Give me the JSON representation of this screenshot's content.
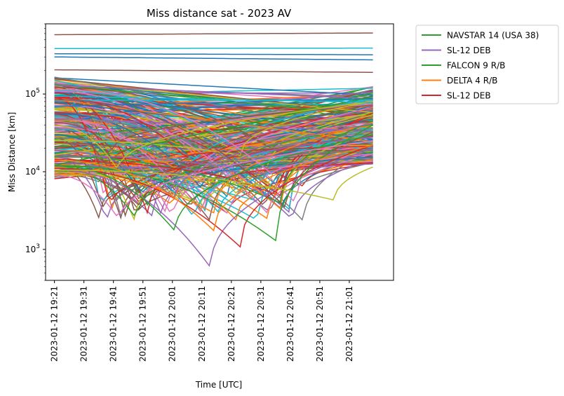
{
  "chart_data": {
    "type": "line",
    "title": "Miss distance sat - 2023 AV",
    "xlabel": "Time [UTC]",
    "ylabel": "Miss Distance [km]",
    "yscale": "log",
    "ylim": [
      400,
      800000
    ],
    "xlim_minutes": [
      -3,
      115
    ],
    "x_ticks": [
      {
        "label": "2023-01-12 19:21",
        "minute": 0
      },
      {
        "label": "2023-01-12 19:31",
        "minute": 10
      },
      {
        "label": "2023-01-12 19:41",
        "minute": 20
      },
      {
        "label": "2023-01-12 19:51",
        "minute": 30
      },
      {
        "label": "2023-01-12 20:01",
        "minute": 40
      },
      {
        "label": "2023-01-12 20:11",
        "minute": 50
      },
      {
        "label": "2023-01-12 20:21",
        "minute": 60
      },
      {
        "label": "2023-01-12 20:31",
        "minute": 70
      },
      {
        "label": "2023-01-12 20:41",
        "minute": 80
      },
      {
        "label": "2023-01-12 20:51",
        "minute": 90
      },
      {
        "label": "2023-01-12 21:01",
        "minute": 100
      }
    ],
    "y_ticks": [
      {
        "label": "10",
        "exp": "3",
        "value": 1000
      },
      {
        "label": "10",
        "exp": "4",
        "value": 10000
      },
      {
        "label": "10",
        "exp": "5",
        "value": 100000
      }
    ],
    "legend": {
      "placement": "outside-upper-right",
      "entries": [
        {
          "name": "NAVSTAR 14 (USA 38)",
          "color": "#2ca02c"
        },
        {
          "name": "SL-12 DEB",
          "color": "#9467bd"
        },
        {
          "name": "FALCON 9 R/B",
          "color": "#2ca02c"
        },
        {
          "name": "DELTA 4 R/B",
          "color": "#ff7f0e"
        },
        {
          "name": "SL-12 DEB",
          "color": "#d62728"
        }
      ]
    },
    "series_count_approx": 300,
    "series": [
      {
        "color": "#8c564b",
        "start": 580000,
        "end": 610000
      },
      {
        "color": "#17becf",
        "start": 385000,
        "end": 390000
      },
      {
        "color": "#1f77b4",
        "start": 330000,
        "end": 320000
      },
      {
        "color": "#1f77b4",
        "start": 300000,
        "end": 275000
      },
      {
        "color": "#8c564b",
        "start": 205000,
        "end": 190000
      },
      {
        "color": "#9467bd",
        "start": 10500,
        "min": 580,
        "min_minute": 53,
        "end": 20000
      },
      {
        "color": "#d62728",
        "start": 11000,
        "min": 1080,
        "min_minute": 63,
        "end": 22000
      },
      {
        "color": "#2ca02c",
        "start": 12000,
        "min": 1300,
        "min_minute": 75,
        "end": 40000
      },
      {
        "color": "#2ca02c",
        "start": 12000,
        "min": 1700,
        "min_minute": 41,
        "end": 30000
      },
      {
        "color": "#ff7f0e",
        "start": 14000,
        "min": 1750,
        "min_minute": 54,
        "end": 22000
      },
      {
        "color": "#bcbd22",
        "start": 10500,
        "min": 4300,
        "min_minute": 95,
        "end": 11500
      },
      {
        "color": "#e377c2",
        "start": 9000,
        "min": 2400,
        "min_minute": 22,
        "end": 25000
      }
    ]
  }
}
